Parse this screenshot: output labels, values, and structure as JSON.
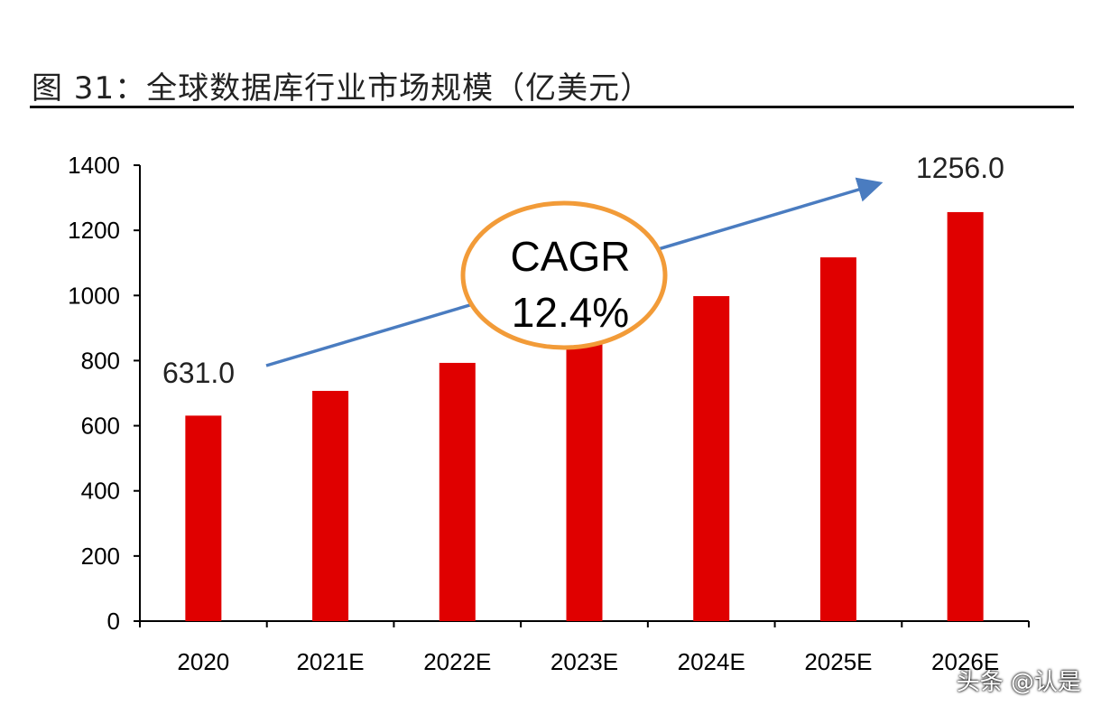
{
  "title": "图 31：全球数据库行业市场规模（亿美元）",
  "watermark": "头条 @认是",
  "chart_data": {
    "type": "bar",
    "title": "图 31：全球数据库行业市场规模（亿美元）",
    "categories": [
      "2020",
      "2021E",
      "2022E",
      "2023E",
      "2024E",
      "2025E",
      "2026E"
    ],
    "values": [
      631,
      707,
      793,
      891,
      998,
      1117,
      1256
    ],
    "ylim": [
      0,
      1400
    ],
    "yticks": [
      0,
      200,
      400,
      600,
      800,
      1000,
      1200,
      1400
    ],
    "grid": false,
    "bar_color": "#e00000",
    "annotations": {
      "start_label": "631.0",
      "end_label": "1256.0",
      "cagr_line1": "CAGR",
      "cagr_line2": "12.4%",
      "arrow_color": "#4a7cc0",
      "ellipse_color": "#f29b38"
    }
  }
}
